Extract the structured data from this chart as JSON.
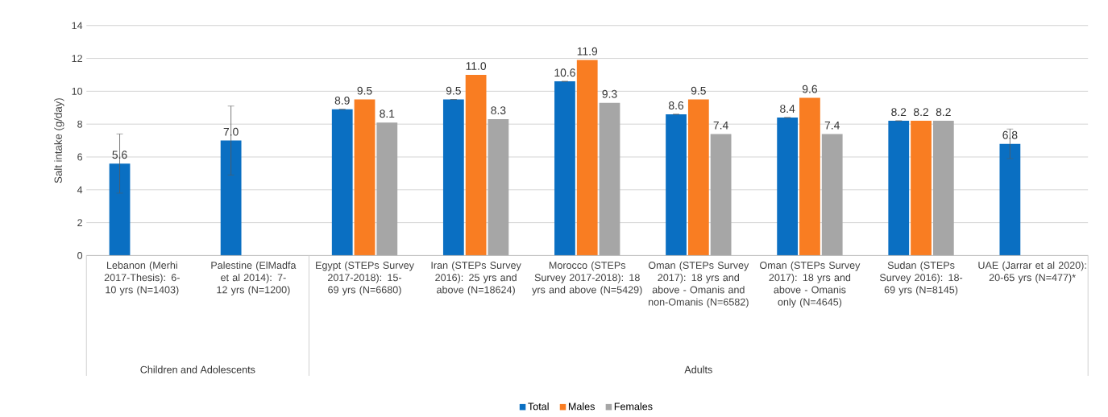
{
  "chart_data": {
    "type": "bar",
    "ylabel": "Salt intake (g/day)",
    "categories": [
      "Lebanon (Merhi 2017-Thesis): 6-10 yrs (N=1403)",
      "Palestine (ElMadfa et al 2014): 7-12 yrs (N=1200)",
      "Egypt (STEPs Survey 2017-2018): 15-69 yrs (N=6680)",
      "Iran (STEPs Survey 2016): 25 yrs and above (N=18624)",
      "Morocco (STEPs Survey 2017-2018): 18 yrs and above (N=5429)",
      "Oman (STEPs Survey 2017): 18 yrs and above - Omanis and non-Omanis (N=6582)",
      "Oman (STEPs Survey 2017): 18 yrs and above - Omanis only (N=4645)",
      "Sudan (STEPs Survey 2016): 18-69 yrs (N=8145)",
      "UAE (Jarrar et al 2020): 20-65 yrs (N=477)*"
    ],
    "series": [
      {
        "name": "Total",
        "color": "#0a6fc2",
        "values": [
          5.6,
          7.0,
          8.9,
          9.5,
          10.6,
          8.6,
          8.4,
          8.2,
          6.8
        ],
        "errors": [
          1.8,
          2.1,
          null,
          null,
          null,
          null,
          null,
          null,
          0.9
        ],
        "value_labels": [
          "5.6",
          "7.0",
          "8.9",
          "9.5",
          "10.6",
          "8.6",
          "8.4",
          "8.2",
          "6.8"
        ]
      },
      {
        "name": "Males",
        "color": "#f97d22",
        "values": [
          null,
          null,
          9.5,
          11.0,
          11.9,
          9.5,
          9.6,
          8.2,
          null
        ],
        "value_labels": [
          null,
          null,
          "9.5",
          "11.0",
          "11.9",
          "9.5",
          "9.6",
          "8.2",
          null
        ]
      },
      {
        "name": "Females",
        "color": "#a6a6a6",
        "values": [
          null,
          null,
          8.1,
          8.3,
          9.3,
          7.4,
          7.4,
          8.2,
          null
        ],
        "value_labels": [
          null,
          null,
          "8.1",
          "8.3",
          "9.3",
          "7.4",
          "7.4",
          "8.2",
          null
        ]
      }
    ],
    "ylim": [
      0,
      14
    ],
    "yticks": [
      0,
      2,
      4,
      6,
      8,
      10,
      12,
      14
    ],
    "annotations": [
      "Children and Adolescents",
      "Adults"
    ],
    "grid": "y",
    "legend": "bottom"
  }
}
